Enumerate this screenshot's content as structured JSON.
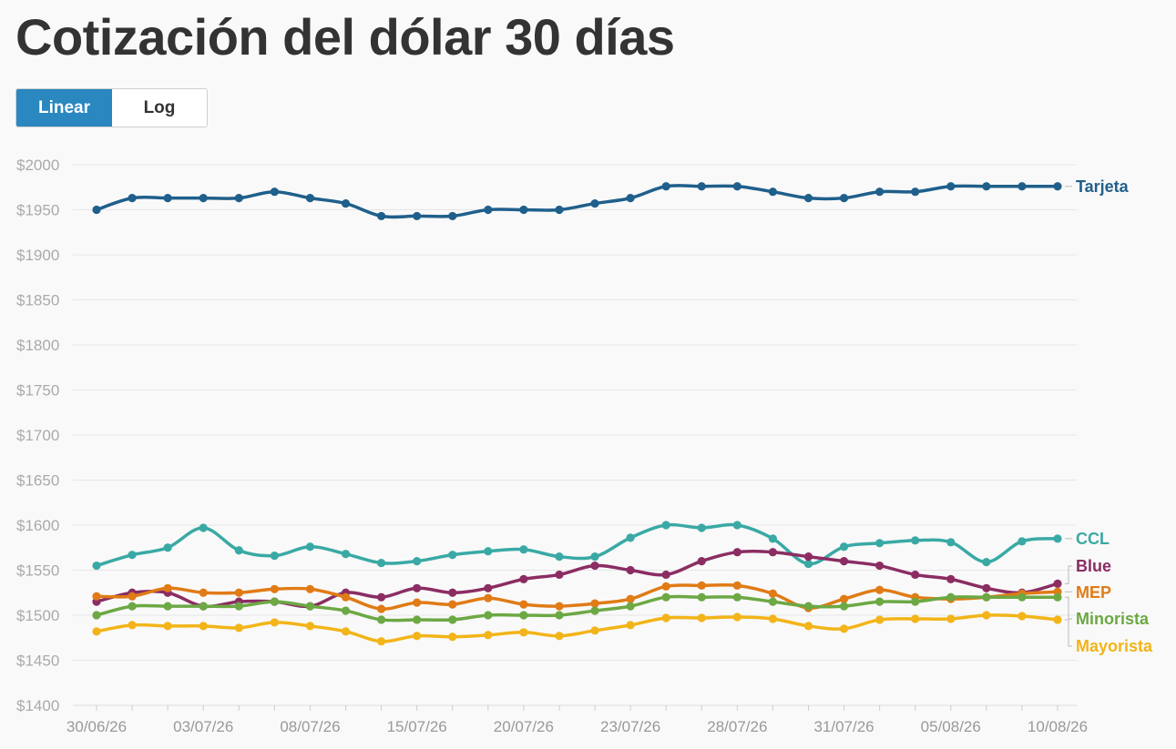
{
  "page": {
    "title": "Cotización del dólar 30 días",
    "scale_toggle": {
      "linear_label": "Linear",
      "log_label": "Log",
      "selected": "Linear"
    }
  },
  "colors": {
    "tarjeta": "#1f5f8b",
    "ccl": "#3aa9a5",
    "blue": "#8b2d63",
    "mep": "#e07b16",
    "minorista": "#6ca844",
    "mayorista": "#f2b418",
    "grid": "#e6e6e6",
    "toggle_active": "#2a87c0"
  },
  "chart_data": {
    "type": "line",
    "title": "Cotización del dólar 30 días",
    "xlabel": "",
    "ylabel": "",
    "y_prefix": "$",
    "ylim": [
      1400,
      2000
    ],
    "yticks": [
      1400,
      1450,
      1500,
      1550,
      1600,
      1650,
      1700,
      1750,
      1800,
      1850,
      1900,
      1950,
      2000
    ],
    "ytick_labels": [
      "$1400",
      "$1450",
      "$1500",
      "$1550",
      "$1600",
      "$1650",
      "$1700",
      "$1750",
      "$1800",
      "$1850",
      "$1900",
      "$1950",
      "$2000"
    ],
    "grid": true,
    "legend": "inline-right",
    "x": [
      "30/06/26",
      "01/07/26",
      "02/07/26",
      "03/07/26",
      "06/07/26",
      "07/07/26",
      "08/07/26",
      "09/07/26",
      "14/07/26",
      "15/07/26",
      "16/07/26",
      "17/07/26",
      "20/07/26",
      "21/07/26",
      "22/07/26",
      "23/07/26",
      "24/07/26",
      "27/07/26",
      "28/07/26",
      "29/07/26",
      "30/07/26",
      "31/07/26",
      "03/08/26",
      "04/08/26",
      "05/08/26",
      "06/08/26",
      "07/08/26",
      "10/08/26"
    ],
    "xtick_labels": [
      "30/06/26",
      "03/07/26",
      "08/07/26",
      "15/07/26",
      "20/07/26",
      "23/07/26",
      "28/07/26",
      "31/07/26",
      "05/08/26",
      "10/08/26"
    ],
    "series": [
      {
        "name": "Tarjeta",
        "color_key": "tarjeta",
        "values": [
          1950,
          1963,
          1963,
          1963,
          1963,
          1970,
          1963,
          1957,
          1943,
          1943,
          1943,
          1950,
          1950,
          1950,
          1957,
          1963,
          1976,
          1976,
          1976,
          1970,
          1963,
          1963,
          1970,
          1970,
          1976,
          1976,
          1976,
          1976
        ]
      },
      {
        "name": "CCL",
        "color_key": "ccl",
        "values": [
          1555,
          1567,
          1575,
          1597,
          1572,
          1566,
          1576,
          1568,
          1558,
          1560,
          1567,
          1571,
          1573,
          1565,
          1565,
          1586,
          1600,
          1597,
          1600,
          1585,
          1557,
          1576,
          1580,
          1583,
          1581,
          1559,
          1582,
          1585
        ]
      },
      {
        "name": "Blue",
        "color_key": "blue",
        "values": [
          1515,
          1525,
          1525,
          1510,
          1515,
          1515,
          1510,
          1525,
          1520,
          1530,
          1525,
          1530,
          1540,
          1545,
          1555,
          1550,
          1545,
          1560,
          1570,
          1570,
          1565,
          1560,
          1555,
          1545,
          1540,
          1530,
          1525,
          1535
        ]
      },
      {
        "name": "MEP",
        "color_key": "mep",
        "values": [
          1521,
          1521,
          1530,
          1525,
          1525,
          1529,
          1529,
          1520,
          1507,
          1514,
          1512,
          1519,
          1512,
          1510,
          1513,
          1518,
          1532,
          1533,
          1533,
          1524,
          1508,
          1518,
          1528,
          1520,
          1518,
          1520,
          1524,
          1526
        ]
      },
      {
        "name": "Minorista",
        "color_key": "minorista",
        "values": [
          1500,
          1510,
          1510,
          1510,
          1510,
          1515,
          1510,
          1505,
          1495,
          1495,
          1495,
          1500,
          1500,
          1500,
          1505,
          1510,
          1520,
          1520,
          1520,
          1515,
          1510,
          1510,
          1515,
          1515,
          1520,
          1520,
          1520,
          1520
        ]
      },
      {
        "name": "Mayorista",
        "color_key": "mayorista",
        "values": [
          1482,
          1489,
          1488,
          1488,
          1486,
          1492,
          1488,
          1482,
          1471,
          1477,
          1476,
          1478,
          1481,
          1477,
          1483,
          1489,
          1497,
          1497,
          1498,
          1496,
          1488,
          1485,
          1495,
          1496,
          1496,
          1500,
          1499,
          1495
        ]
      }
    ]
  }
}
